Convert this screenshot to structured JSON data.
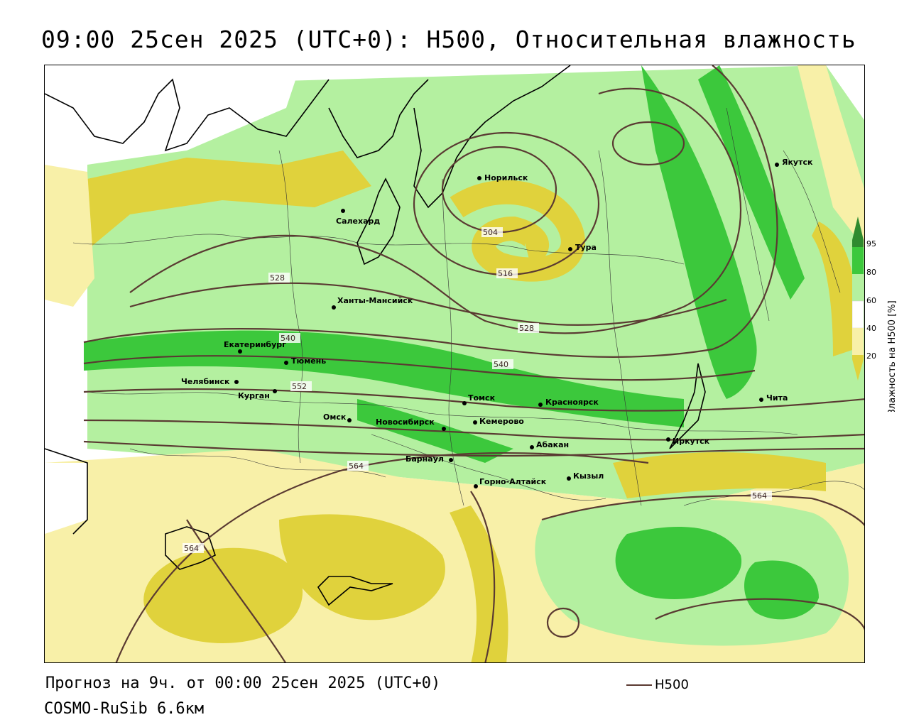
{
  "header": {
    "title": "09:00 25сен 2025 (UTC+0): H500, Относительная влажность"
  },
  "footer": {
    "forecast": "Прогноз на 9ч. от 00:00 25сен 2025 (UTC+0)",
    "model": "COSMO-RuSib 6.6км"
  },
  "legend": {
    "line_label": "H500",
    "line_color": "#5a3a32"
  },
  "colorbar": {
    "title": "Влажность на H500 [%]",
    "ticks": [
      "95",
      "80",
      "60",
      "40",
      "20"
    ],
    "colors": {
      "dark_green": "#2f8a2f",
      "green": "#3cc83c",
      "light_green": "#b4f0a0",
      "white": "#ffffff",
      "light_yellow": "#f8f0a8",
      "yellow": "#e0d23c"
    }
  },
  "cities": [
    {
      "name": "Якутск"
    },
    {
      "name": "Норильск"
    },
    {
      "name": "Салехард"
    },
    {
      "name": "Тура"
    },
    {
      "name": "Ханты-Мансийск"
    },
    {
      "name": "Екатеринбург"
    },
    {
      "name": "Тюмень"
    },
    {
      "name": "Челябинск"
    },
    {
      "name": "Курган"
    },
    {
      "name": "Омск"
    },
    {
      "name": "Новосибирск"
    },
    {
      "name": "Томск"
    },
    {
      "name": "Кемерово"
    },
    {
      "name": "Красноярск"
    },
    {
      "name": "Абакан"
    },
    {
      "name": "Барнаул"
    },
    {
      "name": "Горно-Алтайск"
    },
    {
      "name": "Кызыл"
    },
    {
      "name": "Иркутск"
    },
    {
      "name": "Чита"
    }
  ],
  "isolines": [
    {
      "label": "504"
    },
    {
      "label": "516"
    },
    {
      "label": "528"
    },
    {
      "label": "528"
    },
    {
      "label": "540"
    },
    {
      "label": "540"
    },
    {
      "label": "552"
    },
    {
      "label": "564"
    },
    {
      "label": "564"
    },
    {
      "label": "564"
    }
  ]
}
